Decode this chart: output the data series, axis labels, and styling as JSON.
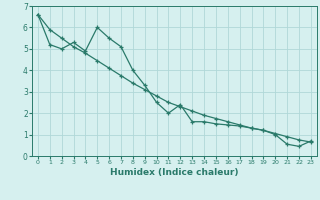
{
  "xlabel": "Humidex (Indice chaleur)",
  "ylabel": "",
  "bg_color": "#d6f0ef",
  "grid_color": "#b0d8d8",
  "line_color": "#2a7a6a",
  "xlim": [
    -0.5,
    23.5
  ],
  "ylim": [
    0,
    7
  ],
  "yticks": [
    0,
    1,
    2,
    3,
    4,
    5,
    6,
    7
  ],
  "xticks": [
    0,
    1,
    2,
    3,
    4,
    5,
    6,
    7,
    8,
    9,
    10,
    11,
    12,
    13,
    14,
    15,
    16,
    17,
    18,
    19,
    20,
    21,
    22,
    23
  ],
  "line1_x": [
    0,
    1,
    2,
    3,
    4,
    5,
    6,
    7,
    8,
    9,
    10,
    11,
    12,
    13,
    14,
    15,
    16,
    17,
    18,
    19,
    20,
    21,
    22,
    23
  ],
  "line1_y": [
    6.6,
    5.2,
    5.0,
    5.3,
    4.9,
    6.0,
    5.5,
    5.1,
    4.0,
    3.3,
    2.5,
    2.0,
    2.4,
    1.6,
    1.6,
    1.5,
    1.45,
    1.4,
    1.3,
    1.2,
    1.0,
    0.55,
    0.45,
    0.7
  ],
  "line2_x": [
    0,
    1,
    2,
    3,
    4,
    5,
    6,
    7,
    8,
    9,
    10,
    11,
    12,
    13,
    14,
    15,
    16,
    17,
    18,
    19,
    20,
    21,
    22,
    23
  ],
  "line2_y": [
    6.6,
    5.9,
    5.5,
    5.1,
    4.8,
    4.45,
    4.1,
    3.75,
    3.4,
    3.1,
    2.8,
    2.5,
    2.3,
    2.1,
    1.9,
    1.75,
    1.6,
    1.45,
    1.3,
    1.2,
    1.05,
    0.9,
    0.75,
    0.65
  ],
  "xlabel_fontsize": 6.5,
  "tick_fontsize_x": 4.5,
  "tick_fontsize_y": 5.5
}
